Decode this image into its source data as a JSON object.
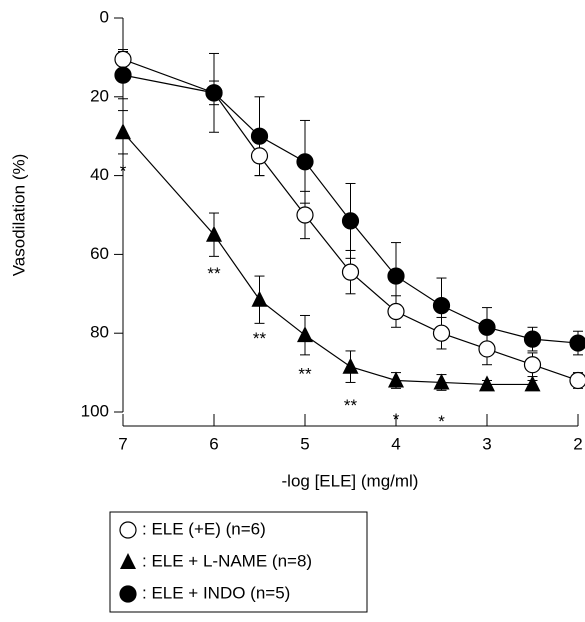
{
  "chart_data": {
    "type": "line",
    "xlabel": "-log [ELE] (mg/ml)",
    "ylabel": "Vasodilation (%)",
    "x": [
      7,
      6,
      5.5,
      5,
      4.5,
      4,
      3.5,
      3,
      2.5,
      2
    ],
    "xlim": [
      7,
      2
    ],
    "xticks": [
      7,
      6,
      5,
      4,
      3,
      2
    ],
    "ylim": [
      0,
      100
    ],
    "yticks": [
      0,
      20,
      40,
      60,
      80,
      100
    ],
    "y_inverted": true,
    "series": [
      {
        "name": ": ELE (+E) (n=6)",
        "color": "#000000",
        "marker": "circle-open",
        "values": [
          10.5,
          19,
          35,
          50,
          64.5,
          74.5,
          80,
          84,
          88,
          92
        ],
        "errors": [
          2.5,
          3,
          5,
          6,
          5.5,
          4,
          4,
          4,
          3,
          2
        ]
      },
      {
        "name": ": ELE + L-NAME (n=8)",
        "color": "#000000",
        "marker": "triangle",
        "values": [
          29,
          55,
          71.5,
          80.5,
          88.5,
          92,
          92.5,
          93,
          93,
          null
        ],
        "errors": [
          5.5,
          5.5,
          6,
          5,
          4,
          2,
          2,
          1,
          1,
          null
        ]
      },
      {
        "name": ": ELE + INDO (n=5)",
        "color": "#000000",
        "marker": "circle-filled",
        "values": [
          14.5,
          19,
          30,
          36.5,
          51.5,
          65.5,
          73,
          78.5,
          81.5,
          82.5
        ],
        "errors": [
          6,
          10,
          10,
          10.5,
          9.5,
          8.5,
          7,
          5,
          3,
          3
        ]
      }
    ],
    "annotations": [
      {
        "x": 7,
        "label": "*"
      },
      {
        "x": 6,
        "label": "**"
      },
      {
        "x": 5.5,
        "label": "**"
      },
      {
        "x": 5,
        "label": "**"
      },
      {
        "x": 4.5,
        "label": "**"
      },
      {
        "x": 4,
        "label": "*"
      },
      {
        "x": 3.5,
        "label": "*"
      }
    ]
  }
}
